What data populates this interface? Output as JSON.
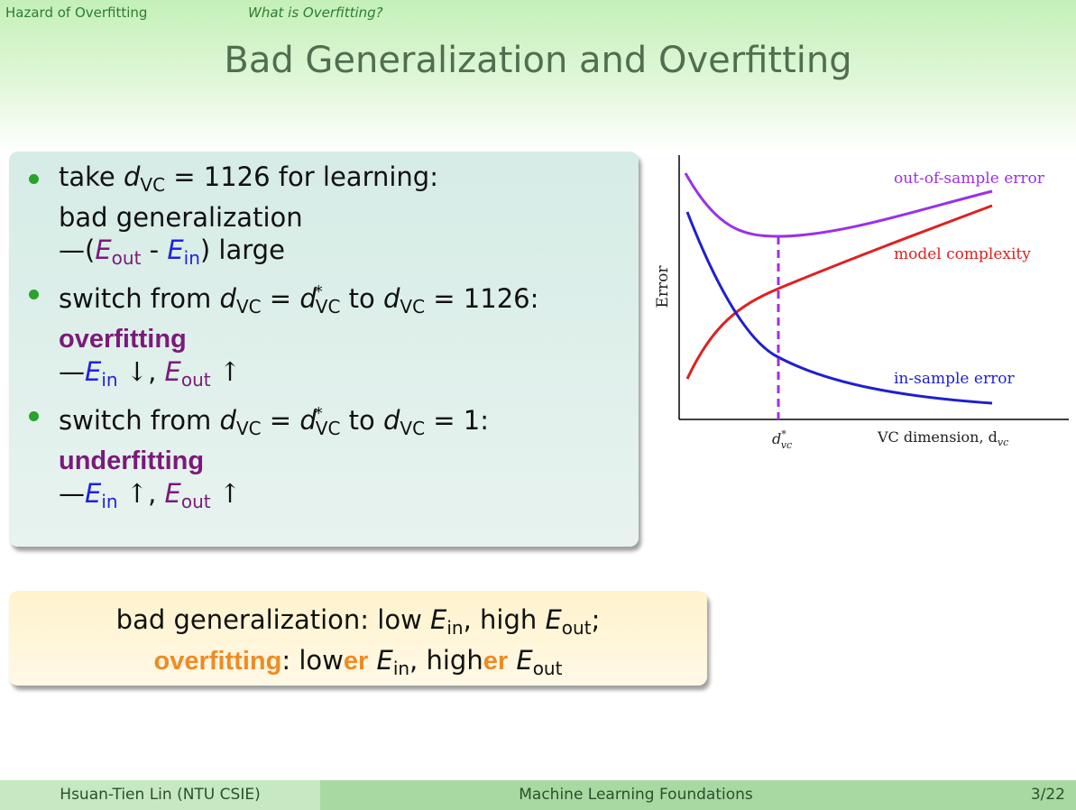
{
  "header": {
    "section": "Hazard of Overfitting",
    "subsection": "What is Overfitting?",
    "title": "Bad Generalization and Overfitting"
  },
  "bullets": {
    "b1": {
      "take": "take ",
      "d": "d",
      "vc": "VC",
      "eq_val": " = 1126 for learning:",
      "line2": "bad generalization",
      "dash_open": "—(",
      "E": "E",
      "out": "out",
      "minus": " - ",
      "in": "in",
      "close_large": ") large"
    },
    "b2": {
      "switch": "switch from ",
      "eq": " = ",
      "star": "*",
      "to": " to ",
      "val": " = 1126:",
      "term": "overfitting",
      "dash": "—",
      "down": " ↓",
      "comma": ", ",
      "up": " ↑"
    },
    "b3": {
      "val": " = 1:",
      "term": "underfitting",
      "up1": " ↑",
      "up2": " ↑"
    }
  },
  "summary": {
    "l1_a": "bad generalization: low ",
    "l1_b": ", high ",
    "l1_c": ";",
    "term": "overfitting",
    "l2_a": ": low",
    "er": "er",
    "l2_b": ", high"
  },
  "chart_data": {
    "type": "line",
    "ylabel": "Error",
    "xlabel": "VC dimension, d",
    "xlabel_sub": "vc",
    "vline_label": "d",
    "vline_label_sup": "*",
    "vline_label_sub": "vc",
    "series": [
      {
        "name": "out-of-sample error",
        "color": "#9b30e8"
      },
      {
        "name": "model complexity",
        "color": "#e02020"
      },
      {
        "name": "in-sample error",
        "color": "#1f1fd0"
      }
    ]
  },
  "footer": {
    "author": "Hsuan-Tien Lin  (NTU CSIE)",
    "course": "Machine Learning Foundations",
    "page": "3/22"
  }
}
